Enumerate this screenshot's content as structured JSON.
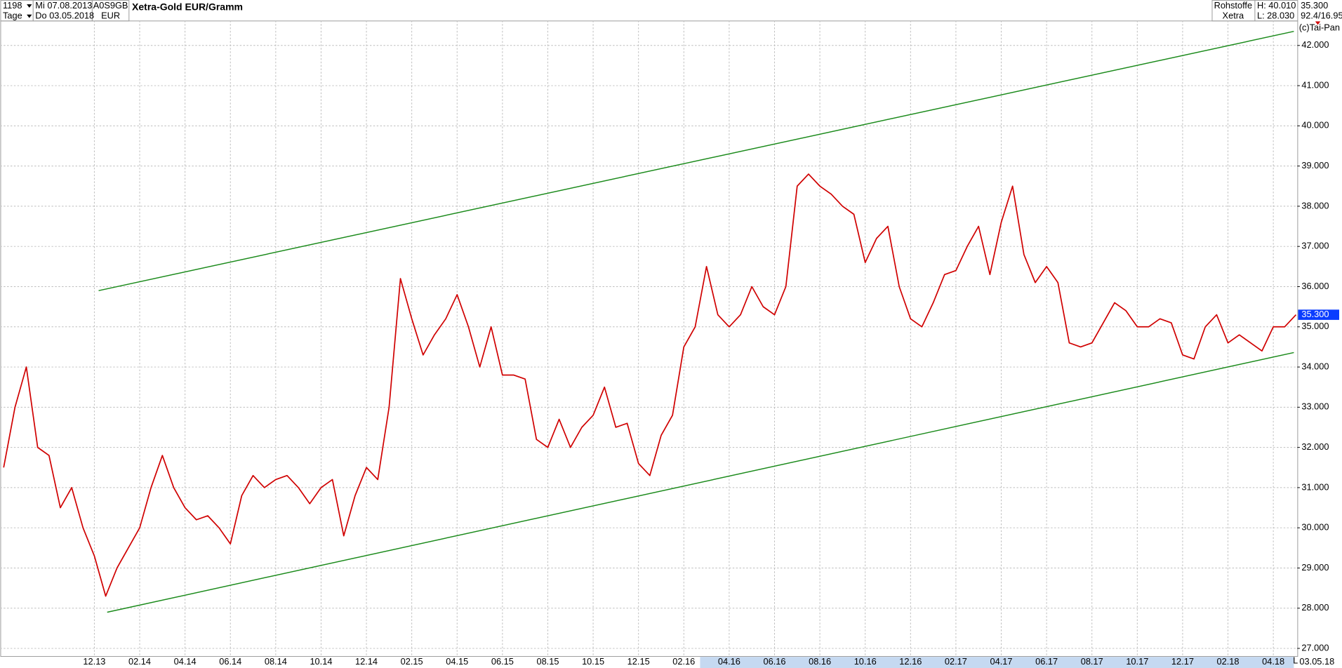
{
  "header": {
    "count": "1198",
    "period": "Tage",
    "from": "Mi 07.08.2013",
    "to": "Do 03.05.2018",
    "isin": "A0S9GB",
    "currency": "EUR",
    "title": "Xetra-Gold EUR/Gramm",
    "group": "Rohstoffe",
    "exchange": "Xetra",
    "high": "H: 40.010",
    "low": "L: 28.030",
    "ratio": "92.4/16.95",
    "copyright": "(c)Tai-Pan",
    "end_date": "03.05.18",
    "scale_mode": "L"
  },
  "chart_data": {
    "type": "line",
    "color": "#d00000",
    "categories": [
      null,
      null,
      null,
      null,
      null,
      null,
      null,
      null,
      "12.13",
      null,
      null,
      null,
      "02.14",
      null,
      null,
      null,
      "04.14",
      null,
      null,
      null,
      "06.14",
      null,
      null,
      null,
      "08.14",
      null,
      null,
      null,
      "10.14",
      null,
      null,
      null,
      "12.14",
      null,
      null,
      null,
      "02.15",
      null,
      null,
      null,
      "04.15",
      null,
      null,
      null,
      "06.15",
      null,
      null,
      null,
      "08.15",
      null,
      null,
      null,
      "10.15",
      null,
      null,
      null,
      "12.15",
      null,
      null,
      null,
      "02.16",
      null,
      null,
      null,
      "04.16",
      null,
      null,
      null,
      "06.16",
      null,
      null,
      null,
      "08.16",
      null,
      null,
      null,
      "10.16",
      null,
      null,
      null,
      "12.16",
      null,
      null,
      null,
      "02.17",
      null,
      null,
      null,
      "04.17",
      null,
      null,
      null,
      "06.17",
      null,
      null,
      null,
      "08.17",
      null,
      null,
      null,
      "10.17",
      null,
      null,
      null,
      "12.17",
      null,
      null,
      null,
      "02.18",
      null,
      null,
      null,
      "04.18",
      null,
      null
    ],
    "values": [
      31.5,
      33.0,
      34.0,
      32.0,
      31.8,
      30.5,
      31.0,
      30.0,
      29.3,
      28.3,
      29.0,
      29.5,
      30.0,
      31.0,
      31.8,
      31.0,
      30.5,
      30.2,
      30.3,
      30.0,
      29.6,
      30.8,
      31.3,
      31.0,
      31.2,
      31.3,
      31.0,
      30.6,
      31.0,
      31.2,
      29.8,
      30.8,
      31.5,
      31.2,
      33.0,
      36.2,
      35.2,
      34.3,
      34.8,
      35.2,
      35.8,
      35.0,
      34.0,
      35.0,
      33.8,
      33.8,
      33.7,
      32.2,
      32.0,
      32.7,
      32.0,
      32.5,
      32.8,
      33.5,
      32.5,
      32.6,
      31.6,
      31.3,
      32.3,
      32.8,
      34.5,
      35.0,
      36.5,
      35.3,
      35.0,
      35.3,
      36.0,
      35.5,
      35.3,
      36.0,
      38.5,
      38.8,
      38.5,
      38.3,
      38.0,
      37.8,
      36.6,
      37.2,
      37.5,
      36.0,
      35.2,
      35.0,
      35.6,
      36.3,
      36.4,
      37.0,
      37.5,
      36.3,
      37.6,
      38.5,
      36.8,
      36.1,
      36.5,
      36.1,
      34.6,
      34.5,
      34.6,
      35.1,
      35.6,
      35.4,
      35.0,
      35.0,
      35.2,
      35.1,
      34.3,
      34.2,
      35.0,
      35.3,
      34.6,
      34.8,
      34.6,
      34.4,
      35.0,
      35.0,
      35.3
    ],
    "trendlines": [
      {
        "values": [
          35.9,
          42.35
        ],
        "color": "#1a8a1a"
      },
      {
        "values": [
          27.9,
          34.36
        ],
        "color": "#1a8a1a"
      }
    ],
    "last": {
      "value": 35.3,
      "label": "35.300"
    },
    "ylim": [
      26.81,
      42.62
    ],
    "yticks": [
      {
        "value": 27,
        "label": "27.000"
      },
      {
        "value": 28,
        "label": "28.000"
      },
      {
        "value": 29,
        "label": "29.000"
      },
      {
        "value": 30,
        "label": "30.000"
      },
      {
        "value": 31,
        "label": "31.000"
      },
      {
        "value": 32,
        "label": "32.000"
      },
      {
        "value": 33,
        "label": "33.000"
      },
      {
        "value": 34,
        "label": "34.000"
      },
      {
        "value": 35,
        "label": "35.000"
      },
      {
        "value": 36,
        "label": "36.000"
      },
      {
        "value": 37,
        "label": "37.000"
      },
      {
        "value": 38,
        "label": "38.000"
      },
      {
        "value": 39,
        "label": "39.000"
      },
      {
        "value": 40,
        "label": "40.000"
      },
      {
        "value": 41,
        "label": "41.000"
      },
      {
        "value": 42,
        "label": "42.000"
      }
    ],
    "grid": true
  }
}
